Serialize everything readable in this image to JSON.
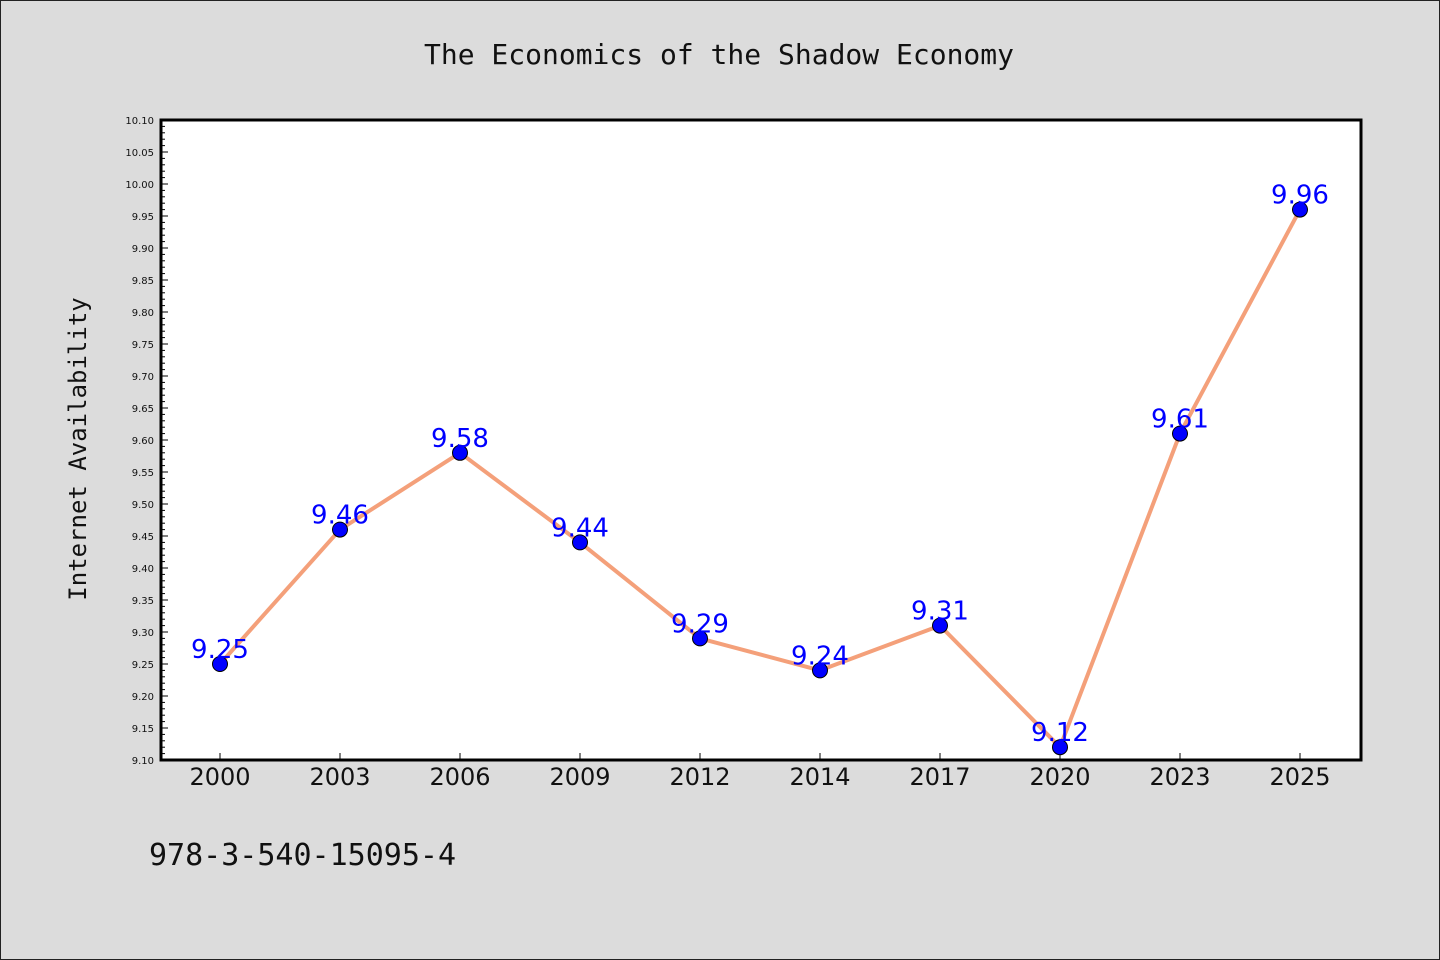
{
  "chart_data": {
    "type": "line",
    "title": "The Economics of the Shadow Economy",
    "xlabel": "",
    "ylabel": "Internet Availability",
    "categories": [
      "2000",
      "2003",
      "2006",
      "2009",
      "2012",
      "2014",
      "2017",
      "2020",
      "2023",
      "2025"
    ],
    "series": [
      {
        "values": [
          9.25,
          9.46,
          9.58,
          9.44,
          9.29,
          9.24,
          9.31,
          9.12,
          9.61,
          9.96
        ],
        "data_labels": [
          "9.25",
          "9.46",
          "9.58",
          "9.44",
          "9.29",
          "9.24",
          "9.31",
          "9.12",
          "9.61",
          "9.96"
        ]
      }
    ],
    "ylim": [
      9.1,
      10.1
    ],
    "yticks": [
      "9.10",
      "9.15",
      "9.20",
      "9.25",
      "9.30",
      "9.35",
      "9.40",
      "9.45",
      "9.50",
      "9.55",
      "9.60",
      "9.65",
      "9.70",
      "9.75",
      "9.80",
      "9.85",
      "9.90",
      "9.95",
      "10.00",
      "10.05",
      "10.10"
    ],
    "grid": false,
    "colors": {
      "line": "#f4a07a",
      "marker": "#0000ff",
      "data_label": "#0000ff",
      "background": "#dcdcdc",
      "plot_background": "#ffffff"
    }
  },
  "footer_text": "978-3-540-15095-4"
}
